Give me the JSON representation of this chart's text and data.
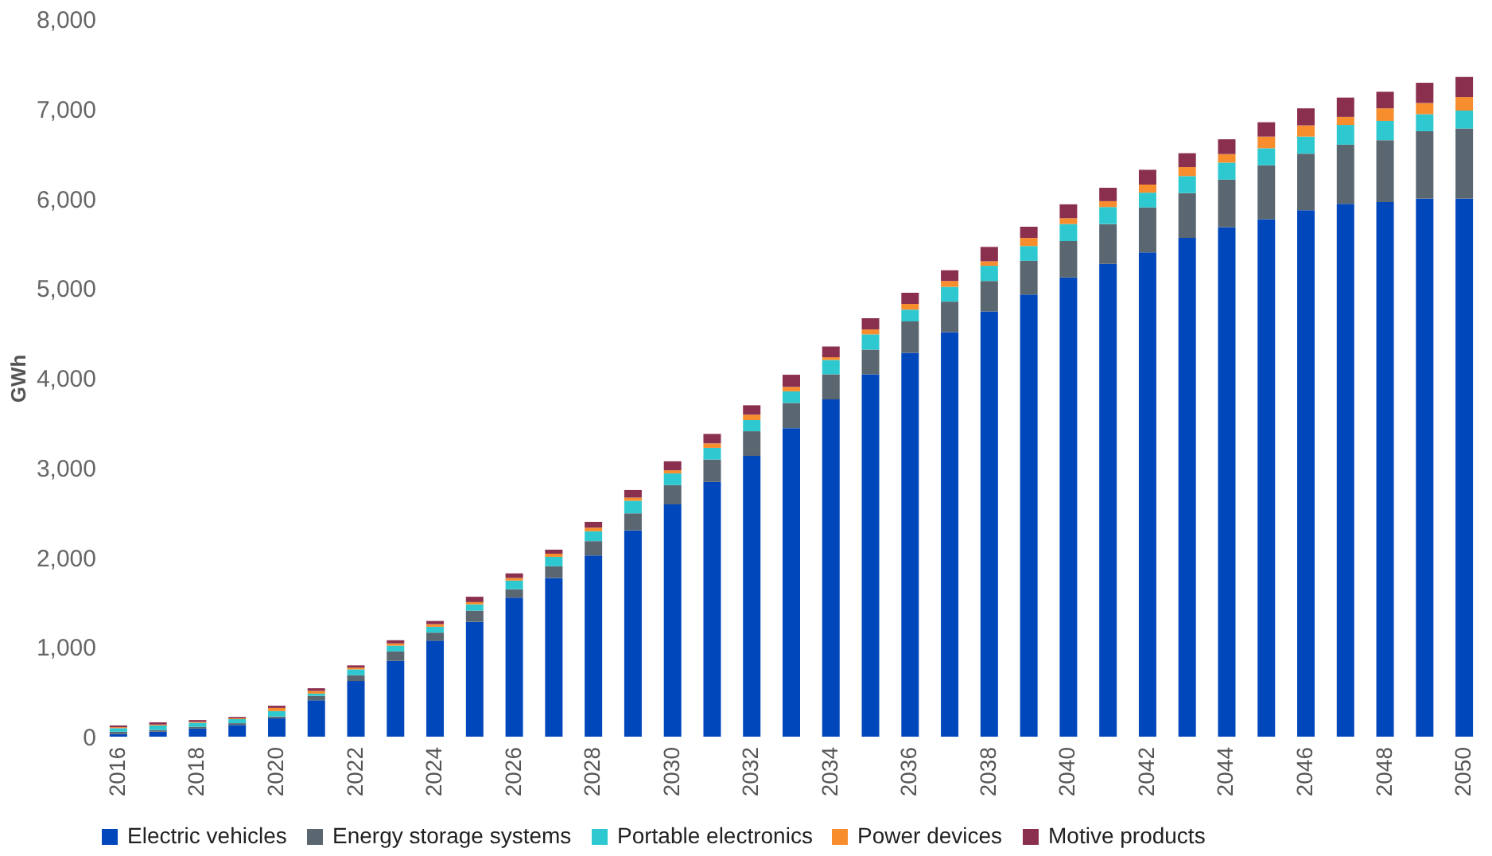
{
  "chart_data": {
    "type": "bar",
    "stacked": true,
    "ylabel": "GWh",
    "categories": [
      "2016",
      null,
      "2018",
      null,
      "2020",
      null,
      "2022",
      null,
      "2024",
      null,
      "2026",
      null,
      "2028",
      null,
      "2030",
      null,
      "2032",
      null,
      "2034",
      null,
      "2036",
      null,
      "2038",
      null,
      "2040",
      null,
      "2042",
      null,
      "2044",
      null,
      "2046",
      null,
      "2048",
      null,
      "2050"
    ],
    "ylim": [
      0,
      8000
    ],
    "yticks": [
      {
        "value": 0,
        "label": "0"
      },
      {
        "value": 1000,
        "label": "1,000"
      },
      {
        "value": 2000,
        "label": "2,000"
      },
      {
        "value": 3000,
        "label": "3,000"
      },
      {
        "value": 4000,
        "label": "4,000"
      },
      {
        "value": 5000,
        "label": "5,000"
      },
      {
        "value": 6000,
        "label": "6,000"
      },
      {
        "value": 7000,
        "label": "7,000"
      },
      {
        "value": 8000,
        "label": "8,000"
      }
    ],
    "grid": false,
    "legend": "bottom",
    "series": [
      {
        "name": "Electric vehicles",
        "color": "#0047bb",
        "values": [
          30,
          55,
          90,
          130,
          205,
          405,
          620,
          845,
          1070,
          1280,
          1550,
          1770,
          2020,
          2300,
          2590,
          2840,
          3130,
          3440,
          3760,
          4040,
          4280,
          4510,
          4740,
          4930,
          5120,
          5270,
          5400,
          5560,
          5680,
          5770,
          5870,
          5940,
          5960,
          6000,
          6000
        ]
      },
      {
        "name": "Energy storage systems",
        "color": "#5a6670",
        "values": [
          25,
          20,
          20,
          20,
          20,
          50,
          65,
          105,
          90,
          125,
          92,
          130,
          160,
          190,
          215,
          250,
          275,
          280,
          280,
          275,
          350,
          340,
          340,
          375,
          405,
          445,
          500,
          500,
          530,
          600,
          630,
          660,
          690,
          750,
          780
        ]
      },
      {
        "name": "Portable electronics",
        "color": "#2ec9d0",
        "values": [
          40,
          50,
          45,
          45,
          60,
          25,
          65,
          65,
          65,
          70,
          98,
          105,
          110,
          140,
          130,
          130,
          125,
          130,
          160,
          170,
          130,
          165,
          170,
          165,
          190,
          190,
          165,
          190,
          190,
          190,
          190,
          220,
          215,
          190,
          200
        ]
      },
      {
        "name": "Power devices",
        "color": "#f78d2d",
        "values": [
          10,
          10,
          10,
          10,
          35,
          30,
          20,
          25,
          30,
          25,
          30,
          35,
          40,
          35,
          35,
          50,
          60,
          50,
          30,
          55,
          65,
          65,
          50,
          90,
          65,
          65,
          90,
          100,
          95,
          130,
          125,
          90,
          140,
          125,
          150
        ]
      },
      {
        "name": "Motive products",
        "color": "#8b2f4f",
        "values": [
          20,
          25,
          20,
          15,
          25,
          30,
          25,
          35,
          35,
          60,
          50,
          45,
          65,
          85,
          100,
          105,
          105,
          135,
          120,
          125,
          125,
          120,
          160,
          125,
          155,
          150,
          165,
          155,
          165,
          160,
          190,
          215,
          185,
          225,
          225
        ]
      }
    ]
  }
}
